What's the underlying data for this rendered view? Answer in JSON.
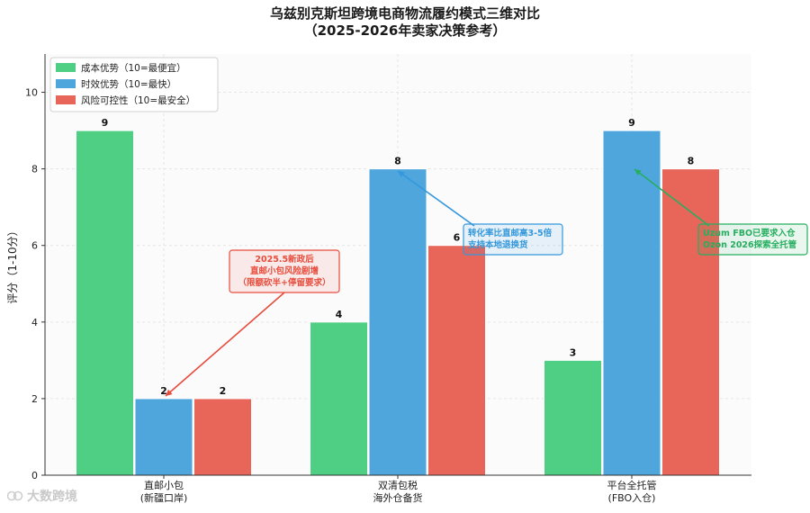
{
  "title_line1": "乌兹别克斯坦跨境电商物流履约模式三维对比",
  "title_line2": "（2025-2026年卖家决策参考）",
  "watermark": "大数跨境",
  "colors": {
    "cost": "#4fcf83",
    "speed": "#4ea6dd",
    "risk": "#e8655a",
    "annot_red": "#e74c3c",
    "annot_blue": "#3498db",
    "annot_green": "#27ae60"
  },
  "chart_data": {
    "type": "bar",
    "title": "乌兹别克斯坦跨境电商物流履约模式三维对比（2025-2026年卖家决策参考）",
    "ylabel": "评分（1-10分）",
    "xlabel": "",
    "ylim": [
      0,
      11
    ],
    "yticks": [
      0,
      2,
      4,
      6,
      8,
      10
    ],
    "grid": true,
    "legend_position": "top-left",
    "categories": [
      [
        "直邮小包",
        "(新疆口岸)"
      ],
      [
        "双清包税",
        "海外仓备货"
      ],
      [
        "平台全托管",
        "(FBO入仓)"
      ]
    ],
    "series": [
      {
        "name": "成本优势（10=最便宜）",
        "key": "cost",
        "values": [
          9,
          4,
          3
        ]
      },
      {
        "name": "时效优势（10=最快）",
        "key": "speed",
        "values": [
          2,
          8,
          9
        ]
      },
      {
        "name": "风险可控性（10=最安全）",
        "key": "risk",
        "values": [
          2,
          6,
          8
        ]
      }
    ],
    "annotations": [
      {
        "lines": [
          "2025.5新政后",
          "直邮小包风险剧增",
          "（限额砍半+停留要求）"
        ],
        "color_key": "annot_red",
        "target_category": 0,
        "target_series": 1
      },
      {
        "lines": [
          "转化率比直邮高3-5倍",
          "支持本地退换货"
        ],
        "color_key": "annot_blue",
        "target_category": 1,
        "target_series": 1
      },
      {
        "lines": [
          "Uzum FBO已要求入仓",
          "Ozon 2026探索全托管"
        ],
        "color_key": "annot_green",
        "target_category": 2,
        "target_series": 1
      }
    ]
  }
}
